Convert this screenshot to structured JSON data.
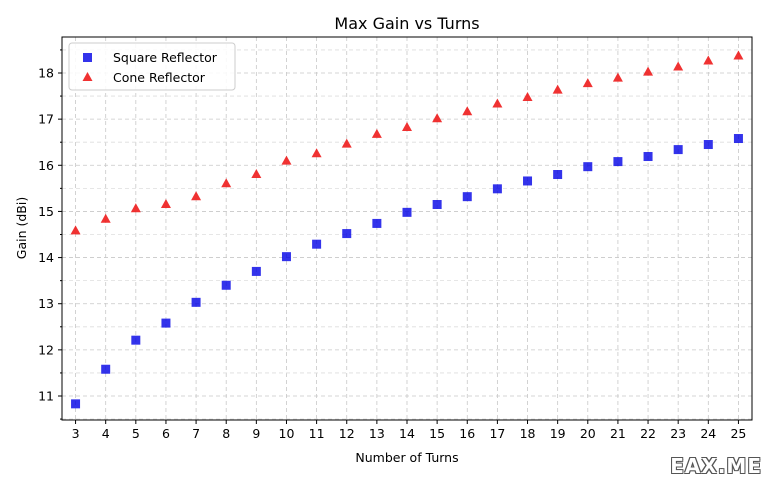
{
  "chart_data": {
    "type": "scatter",
    "title": "Max Gain vs Turns",
    "xlabel": "Number of Turns",
    "ylabel": "Gain (dBi)",
    "x": [
      3,
      4,
      5,
      6,
      7,
      8,
      9,
      10,
      11,
      12,
      13,
      14,
      15,
      16,
      17,
      18,
      19,
      20,
      21,
      22,
      23,
      24,
      25
    ],
    "xlim": [
      2.55,
      25.45
    ],
    "ylim": [
      10.48,
      18.78
    ],
    "yticks": [
      11,
      12,
      13,
      14,
      15,
      16,
      17,
      18
    ],
    "grid": true,
    "legend_position": "top-left",
    "series": [
      {
        "name": "Square Reflector",
        "marker": "square",
        "color": "#0000e6",
        "values": [
          10.83,
          11.58,
          12.21,
          12.58,
          13.03,
          13.4,
          13.7,
          14.02,
          14.29,
          14.52,
          14.74,
          14.98,
          15.15,
          15.32,
          15.49,
          15.66,
          15.8,
          15.97,
          16.08,
          16.19,
          16.34,
          16.45,
          16.58
        ]
      },
      {
        "name": "Cone Reflector",
        "marker": "triangle",
        "color": "#ee1c1c",
        "values": [
          14.59,
          14.84,
          15.07,
          15.16,
          15.33,
          15.61,
          15.81,
          16.1,
          16.26,
          16.47,
          16.68,
          16.83,
          17.02,
          17.17,
          17.34,
          17.48,
          17.64,
          17.78,
          17.9,
          18.03,
          18.14,
          18.27,
          18.38
        ]
      }
    ]
  },
  "watermark": "EAX.ME"
}
